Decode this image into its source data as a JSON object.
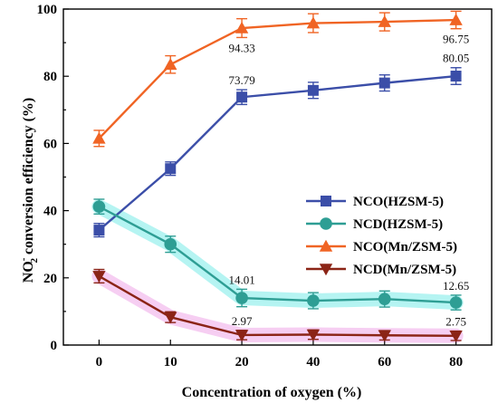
{
  "chart_data": {
    "type": "line",
    "title": "",
    "xlabel": "Concentration of oxygen (%)",
    "ylabel_prefix": "NO",
    "ylabel_sup": "-",
    "ylabel_sub": "2",
    "ylabel_suffix": " conversion efficiency (%)",
    "categories": [
      "0",
      "10",
      "20",
      "40",
      "60",
      "80"
    ],
    "ylim": [
      0,
      100
    ],
    "yticks": [
      "0",
      "20",
      "40",
      "60",
      "80",
      "100"
    ],
    "grid": false,
    "legend_position": "right",
    "series": [
      {
        "name": "NCO(HZSM-5)",
        "marker": "square",
        "color": "#3b4ea8",
        "values": [
          34.2,
          52.5,
          73.79,
          75.8,
          78.0,
          80.05
        ],
        "errors": [
          2.0,
          2.0,
          2.2,
          2.4,
          2.4,
          2.5
        ]
      },
      {
        "name": "NCD(HZSM-5)",
        "marker": "circle",
        "color": "#2e9e94",
        "values": [
          41.2,
          30.0,
          14.01,
          13.2,
          13.7,
          12.65
        ],
        "errors": [
          2.2,
          2.4,
          2.6,
          2.4,
          2.4,
          2.2
        ]
      },
      {
        "name": "NCO(Mn/ZSM-5)",
        "marker": "triangle-up",
        "color": "#f06424",
        "values": [
          61.5,
          83.5,
          94.33,
          95.8,
          96.2,
          96.75
        ],
        "errors": [
          2.4,
          2.6,
          2.8,
          2.8,
          2.7,
          2.6
        ]
      },
      {
        "name": "NCD(Mn/ZSM-5)",
        "marker": "triangle-down",
        "color": "#8b2416",
        "values": [
          20.5,
          8.3,
          2.97,
          3.1,
          2.9,
          2.75
        ],
        "errors": [
          2.0,
          1.6,
          1.4,
          1.4,
          1.4,
          1.4
        ]
      }
    ],
    "annotations": [
      {
        "text": "73.79",
        "series": 0,
        "index": 2,
        "pos": "above"
      },
      {
        "text": "80.05",
        "series": 0,
        "index": 5,
        "pos": "above"
      },
      {
        "text": "94.33",
        "series": 2,
        "index": 2,
        "pos": "below"
      },
      {
        "text": "96.75",
        "series": 2,
        "index": 5,
        "pos": "below"
      },
      {
        "text": "14.01",
        "series": 1,
        "index": 2,
        "pos": "above"
      },
      {
        "text": "12.65",
        "series": 1,
        "index": 5,
        "pos": "above"
      },
      {
        "text": "2.97",
        "series": 3,
        "index": 2,
        "pos": "above"
      },
      {
        "text": "2.75",
        "series": 3,
        "index": 5,
        "pos": "above"
      }
    ],
    "highlight_colors": {
      "cyan": "#a8f2f0",
      "pink": "#f4c6f0"
    }
  }
}
